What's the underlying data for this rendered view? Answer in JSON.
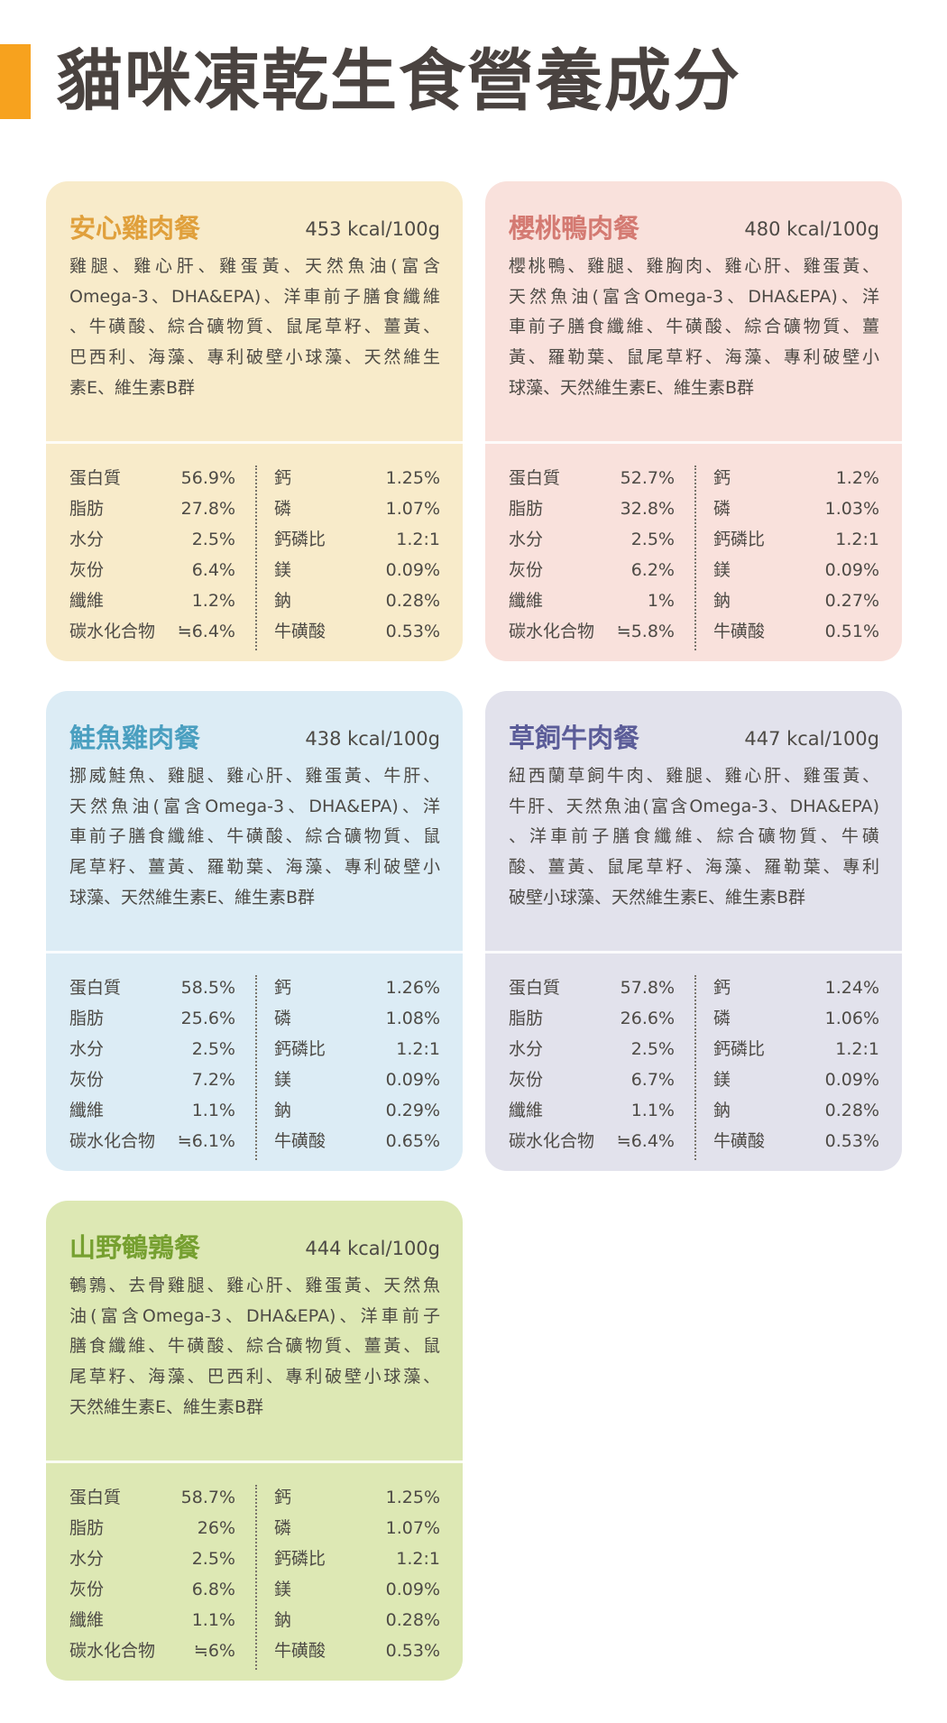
{
  "page": {
    "title": "貓咪凍乾生食營養成分",
    "accent_color": "#f7a21e"
  },
  "cards": [
    {
      "name": "安心雞肉餐",
      "kcal": "453 kcal/100g",
      "bg_color": "#f8ebca",
      "title_color": "#e0a03c",
      "description_lines": [
        "雞腿、雞心肝、雞蛋黃、天然魚油(富含",
        "Omega-3、DHA&EPA)、洋車前子膳食纖維",
        "、牛磺酸、綜合礦物質、鼠尾草籽、薑黃、",
        "巴西利、海藻、專利破壁小球藻、天然維生",
        "素E、維生素B群"
      ],
      "left": [
        [
          "蛋白質",
          "56.9%"
        ],
        [
          "脂肪",
          "27.8%"
        ],
        [
          "水分",
          "2.5%"
        ],
        [
          "灰份",
          "6.4%"
        ],
        [
          "纖維",
          "1.2%"
        ],
        [
          "碳水化合物",
          "≒6.4%"
        ]
      ],
      "right": [
        [
          "鈣",
          "1.25%"
        ],
        [
          "磷",
          "1.07%"
        ],
        [
          "鈣磷比",
          "1.2:1"
        ],
        [
          "鎂",
          "0.09%"
        ],
        [
          "鈉",
          "0.28%"
        ],
        [
          "牛磺酸",
          "0.53%"
        ]
      ]
    },
    {
      "name": "櫻桃鴨肉餐",
      "kcal": "480 kcal/100g",
      "bg_color": "#f9e1dc",
      "title_color": "#d47a72",
      "description_lines": [
        "櫻桃鴨、雞腿、雞胸肉、雞心肝、雞蛋黃、",
        "天然魚油(富含Omega-3、DHA&EPA)、洋",
        "車前子膳食纖維、牛磺酸、綜合礦物質、薑",
        "黃、羅勒葉、鼠尾草籽、海藻、專利破壁小",
        "球藻、天然維生素E、維生素B群"
      ],
      "left": [
        [
          "蛋白質",
          "52.7%"
        ],
        [
          "脂肪",
          "32.8%"
        ],
        [
          "水分",
          "2.5%"
        ],
        [
          "灰份",
          "6.2%"
        ],
        [
          "纖維",
          "1%"
        ],
        [
          "碳水化合物",
          "≒5.8%"
        ]
      ],
      "right": [
        [
          "鈣",
          "1.2%"
        ],
        [
          "磷",
          "1.03%"
        ],
        [
          "鈣磷比",
          "1.2:1"
        ],
        [
          "鎂",
          "0.09%"
        ],
        [
          "鈉",
          "0.27%"
        ],
        [
          "牛磺酸",
          "0.51%"
        ]
      ]
    },
    {
      "name": "鮭魚雞肉餐",
      "kcal": "438 kcal/100g",
      "bg_color": "#dcecf5",
      "title_color": "#4a9fc0",
      "description_lines": [
        "挪威鮭魚、雞腿、雞心肝、雞蛋黃、牛肝、",
        "天然魚油(富含Omega-3、DHA&EPA)、洋",
        "車前子膳食纖維、牛磺酸、綜合礦物質、鼠",
        "尾草籽、薑黃、羅勒葉、海藻、專利破壁小",
        "球藻、天然維生素E、維生素B群"
      ],
      "left": [
        [
          "蛋白質",
          "58.5%"
        ],
        [
          "脂肪",
          "25.6%"
        ],
        [
          "水分",
          "2.5%"
        ],
        [
          "灰份",
          "7.2%"
        ],
        [
          "纖維",
          "1.1%"
        ],
        [
          "碳水化合物",
          "≒6.1%"
        ]
      ],
      "right": [
        [
          "鈣",
          "1.26%"
        ],
        [
          "磷",
          "1.08%"
        ],
        [
          "鈣磷比",
          "1.2:1"
        ],
        [
          "鎂",
          "0.09%"
        ],
        [
          "鈉",
          "0.29%"
        ],
        [
          "牛磺酸",
          "0.65%"
        ]
      ]
    },
    {
      "name": "草飼牛肉餐",
      "kcal": "447 kcal/100g",
      "bg_color": "#e2e2ec",
      "title_color": "#5b5c98",
      "description_lines": [
        "紐西蘭草飼牛肉、雞腿、雞心肝、雞蛋黃、",
        "牛肝、天然魚油(富含Omega-3、DHA&EPA)",
        "、洋車前子膳食纖維、綜合礦物質、牛磺",
        "酸、薑黃、鼠尾草籽、海藻、羅勒葉、專利",
        "破壁小球藻、天然維生素E、維生素B群"
      ],
      "left": [
        [
          "蛋白質",
          "57.8%"
        ],
        [
          "脂肪",
          "26.6%"
        ],
        [
          "水分",
          "2.5%"
        ],
        [
          "灰份",
          "6.7%"
        ],
        [
          "纖維",
          "1.1%"
        ],
        [
          "碳水化合物",
          "≒6.4%"
        ]
      ],
      "right": [
        [
          "鈣",
          "1.24%"
        ],
        [
          "磷",
          "1.06%"
        ],
        [
          "鈣磷比",
          "1.2:1"
        ],
        [
          "鎂",
          "0.09%"
        ],
        [
          "鈉",
          "0.28%"
        ],
        [
          "牛磺酸",
          "0.53%"
        ]
      ]
    },
    {
      "name": "山野鵪鶉餐",
      "kcal": "444 kcal/100g",
      "bg_color": "#dde8b4",
      "title_color": "#76a030",
      "description_lines": [
        "鵪鶉、去骨雞腿、雞心肝、雞蛋黃、天然魚",
        "油(富含Omega-3、DHA&EPA)、洋車前子",
        "膳食纖維、牛磺酸、綜合礦物質、薑黃、鼠",
        "尾草籽、海藻、巴西利、專利破壁小球藻、",
        "天然維生素E、維生素B群"
      ],
      "left": [
        [
          "蛋白質",
          "58.7%"
        ],
        [
          "脂肪",
          "26%"
        ],
        [
          "水分",
          "2.5%"
        ],
        [
          "灰份",
          "6.8%"
        ],
        [
          "纖維",
          "1.1%"
        ],
        [
          "碳水化合物",
          "≒6%"
        ]
      ],
      "right": [
        [
          "鈣",
          "1.25%"
        ],
        [
          "磷",
          "1.07%"
        ],
        [
          "鈣磷比",
          "1.2:1"
        ],
        [
          "鎂",
          "0.09%"
        ],
        [
          "鈉",
          "0.28%"
        ],
        [
          "牛磺酸",
          "0.53%"
        ]
      ]
    }
  ]
}
